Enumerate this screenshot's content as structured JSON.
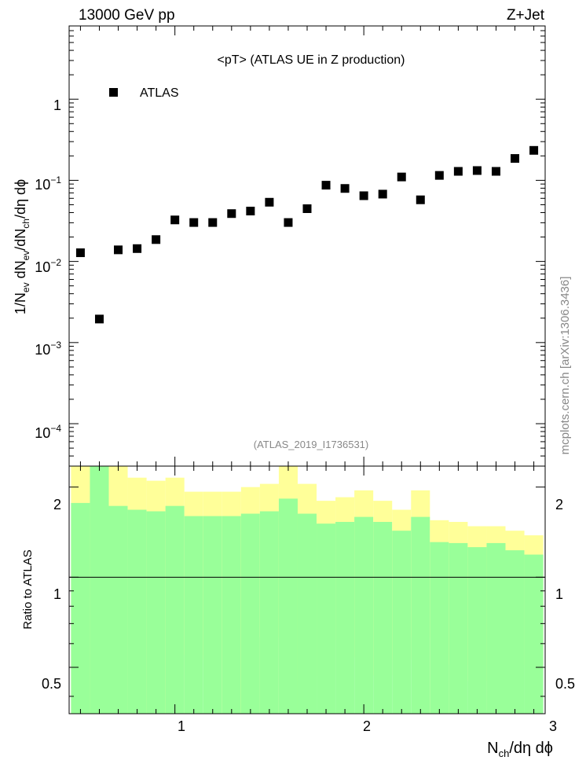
{
  "header": {
    "left": "13000 GeV pp",
    "right": "Z+Jet"
  },
  "title": "<pT> (ATLAS UE in Z production)",
  "ylabel_main": "1/N_ev dN_ev/dN_ch/dη dϕ",
  "ylabel_ratio": "Ratio to ATLAS",
  "xlabel": "N_ch/dη dϕ",
  "analysis_tag": "(ATLAS_2019_I1736531)",
  "watermark": "mcplots.cern.ch [arXiv:1306.3436]",
  "legend": {
    "label": "ATLAS",
    "marker_color": "#000000"
  },
  "main_y_ticks": [
    "10^-4",
    "10^-3",
    "10^-2",
    "10^-1",
    "1"
  ],
  "ratio_y_ticks": [
    "0.5",
    "1",
    "2"
  ],
  "x_ticks": [
    "1",
    "2",
    "3"
  ],
  "colors": {
    "band_outer": "#ffff99",
    "band_inner": "#99ff99",
    "reference_line": "#000000"
  },
  "chart_data": [
    {
      "type": "scatter",
      "name": "main",
      "xlim": [
        0.44,
        2.96
      ],
      "ylim": [
        3e-05,
        8
      ],
      "yscale": "log",
      "series": [
        {
          "name": "ATLAS",
          "x": [
            0.5,
            0.6,
            0.7,
            0.8,
            0.9,
            1.0,
            1.1,
            1.2,
            1.3,
            1.4,
            1.5,
            1.6,
            1.7,
            1.8,
            1.9,
            2.0,
            2.1,
            2.2,
            2.3,
            2.4,
            2.5,
            2.6,
            2.7,
            2.8,
            2.9
          ],
          "y": [
            0.0128,
            0.00195,
            0.0139,
            0.0144,
            0.0186,
            0.0325,
            0.0302,
            0.0302,
            0.0389,
            0.0418,
            0.0537,
            0.0302,
            0.0447,
            0.0871,
            0.0794,
            0.0646,
            0.0676,
            0.11,
            0.0575,
            0.115,
            0.129,
            0.132,
            0.129,
            0.186,
            0.234
          ]
        }
      ]
    },
    {
      "type": "area",
      "name": "ratio",
      "xlim": [
        0.44,
        2.96
      ],
      "ylim": [
        0.35,
        2.35
      ],
      "yscale": "log",
      "reference": 1,
      "bin_edges": [
        0.45,
        0.55,
        0.65,
        0.75,
        0.85,
        0.95,
        1.05,
        1.15,
        1.25,
        1.35,
        1.45,
        1.55,
        1.65,
        1.75,
        1.85,
        1.95,
        2.05,
        2.15,
        2.25,
        2.35,
        2.45,
        2.55,
        2.65,
        2.75,
        2.85,
        2.95
      ],
      "outer_band": {
        "upper": [
          2.35,
          2.35,
          2.35,
          2.15,
          2.1,
          2.15,
          1.93,
          1.93,
          1.93,
          2.0,
          2.05,
          2.35,
          2.05,
          1.8,
          1.85,
          1.95,
          1.8,
          1.68,
          1.95,
          1.55,
          1.53,
          1.48,
          1.48,
          1.43,
          1.38
        ],
        "lower": [
          0.35,
          0.35,
          0.35,
          0.35,
          0.35,
          0.35,
          0.55,
          0.53,
          0.35,
          0.35,
          0.63,
          0.35,
          0.45,
          0.47,
          0.62,
          0.54,
          0.47,
          0.53,
          0.63,
          0.35,
          0.51,
          0.45,
          0.36,
          0.48,
          0.51
        ]
      },
      "inner_band": {
        "upper": [
          1.77,
          2.35,
          1.73,
          1.68,
          1.66,
          1.73,
          1.6,
          1.6,
          1.6,
          1.63,
          1.66,
          1.83,
          1.63,
          1.51,
          1.53,
          1.59,
          1.53,
          1.43,
          1.59,
          1.31,
          1.3,
          1.26,
          1.3,
          1.23,
          1.19
        ],
        "lower": [
          0.35,
          0.35,
          0.35,
          0.35,
          0.35,
          0.35,
          0.35,
          0.35,
          0.35,
          0.35,
          0.35,
          0.35,
          0.35,
          0.35,
          0.35,
          0.35,
          0.35,
          0.35,
          0.35,
          0.35,
          0.35,
          0.35,
          0.35,
          0.35,
          0.35
        ]
      }
    }
  ]
}
